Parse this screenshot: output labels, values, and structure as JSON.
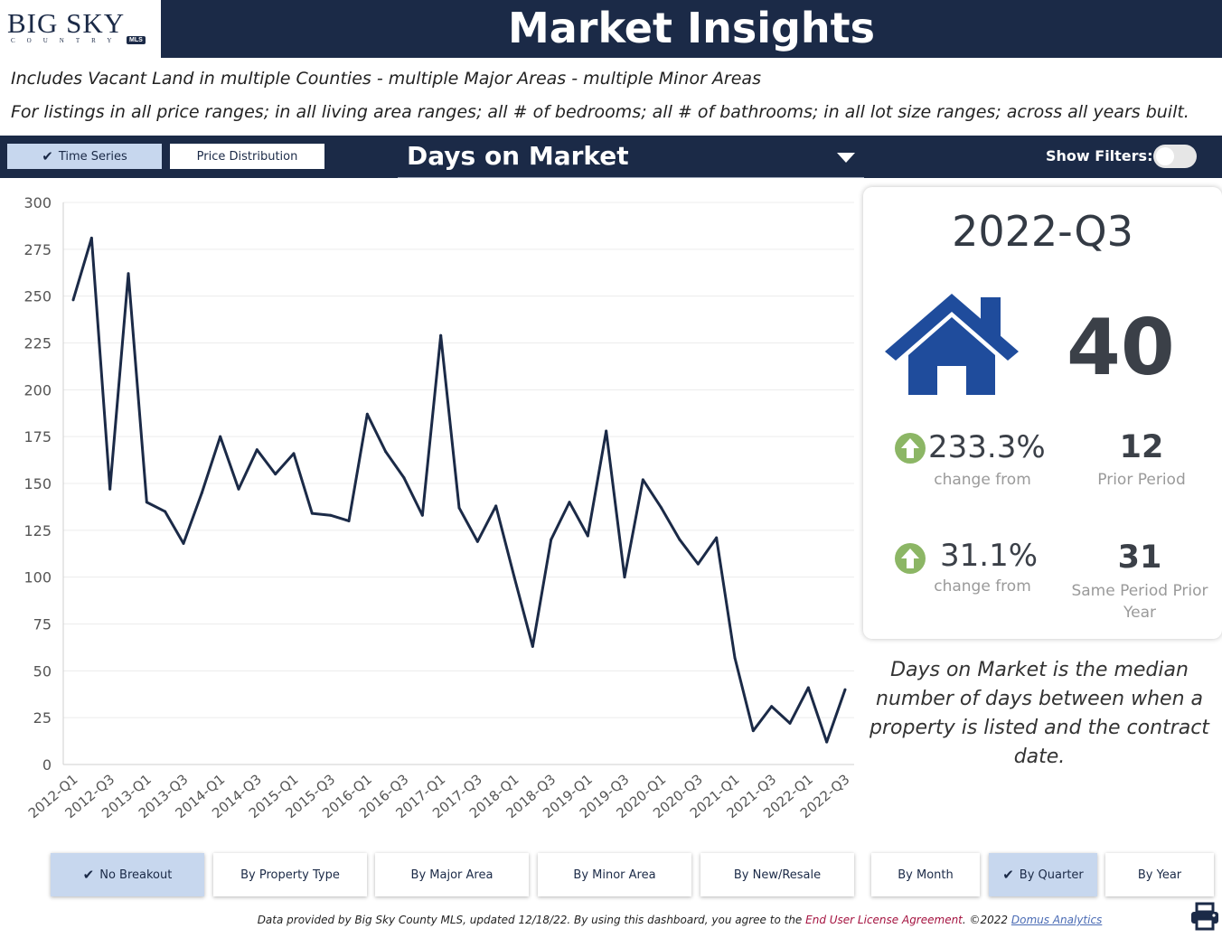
{
  "header": {
    "logo_text": "BIG SKY",
    "logo_sub": "COUNTRY",
    "logo_badge": "MLS",
    "title": "Market Insights"
  },
  "subtitle_line1": "Includes Vacant Land in multiple Counties - multiple Major Areas - multiple Minor Areas",
  "subtitle_line2": "For listings in all price ranges; in all living area ranges; all # of bedrooms; all # of bathrooms; in all lot size ranges; across all years built.",
  "toolbar": {
    "time_series_label": "Time Series",
    "price_distribution_label": "Price Distribution",
    "metric_label": "Days on Market",
    "show_filters_label": "Show Filters:"
  },
  "summary": {
    "period": "2022-Q3",
    "value": "40",
    "change1_pct": "233.3%",
    "change1_caption": "change from",
    "prior_value": "12",
    "prior_caption": "Prior Period",
    "change2_pct": "31.1%",
    "change2_caption": "change from",
    "prior_year_value": "31",
    "prior_year_caption_line1": "Same Period Prior",
    "prior_year_caption_line2": "Year",
    "definition": "Days on Market is the median number of days between when a property is listed and the contract date."
  },
  "colors": {
    "navy": "#1b2a47",
    "house": "#1f4c9c",
    "up_arrow": "#8cb665",
    "active_button": "#c7d7ee"
  },
  "breakout_buttons": [
    {
      "label": "No Breakout",
      "active": true
    },
    {
      "label": "By Property Type",
      "active": false
    },
    {
      "label": "By Major Area",
      "active": false
    },
    {
      "label": "By Minor Area",
      "active": false
    },
    {
      "label": "By New/Resale",
      "active": false
    }
  ],
  "period_buttons": [
    {
      "label": "By Month",
      "active": false
    },
    {
      "label": "By Quarter",
      "active": true
    },
    {
      "label": "By Year",
      "active": false
    }
  ],
  "footer": {
    "text_before": "Data provided by Big Sky County MLS, updated 12/18/22.  By using this dashboard, you agree to the ",
    "eula_link": "End User License Agreement",
    "text_middle": ".  ©2022 ",
    "domus_link": "Domus Analytics"
  },
  "chart_data": {
    "type": "line",
    "title": "",
    "xlabel": "",
    "ylabel": "",
    "ylim": [
      0,
      300
    ],
    "yticks": [
      0,
      25,
      50,
      75,
      100,
      125,
      150,
      175,
      200,
      225,
      250,
      275,
      300
    ],
    "grid": true,
    "x_tick_labels": [
      "2012-Q1",
      "2012-Q3",
      "2013-Q1",
      "2013-Q3",
      "2014-Q1",
      "2014-Q3",
      "2015-Q1",
      "2015-Q3",
      "2016-Q1",
      "2016-Q3",
      "2017-Q1",
      "2017-Q3",
      "2018-Q1",
      "2018-Q3",
      "2019-Q1",
      "2019-Q3",
      "2020-Q1",
      "2020-Q3",
      "2021-Q1",
      "2021-Q3",
      "2022-Q1",
      "2022-Q3"
    ],
    "x": [
      "2012-Q1",
      "2012-Q2",
      "2012-Q3",
      "2012-Q4",
      "2013-Q1",
      "2013-Q2",
      "2013-Q3",
      "2013-Q4",
      "2014-Q1",
      "2014-Q2",
      "2014-Q3",
      "2014-Q4",
      "2015-Q1",
      "2015-Q2",
      "2015-Q3",
      "2015-Q4",
      "2016-Q1",
      "2016-Q2",
      "2016-Q3",
      "2016-Q4",
      "2017-Q1",
      "2017-Q2",
      "2017-Q3",
      "2017-Q4",
      "2018-Q1",
      "2018-Q2",
      "2018-Q3",
      "2018-Q4",
      "2019-Q1",
      "2019-Q2",
      "2019-Q3",
      "2019-Q4",
      "2020-Q1",
      "2020-Q2",
      "2020-Q3",
      "2020-Q4",
      "2021-Q1",
      "2021-Q2",
      "2021-Q3",
      "2021-Q4",
      "2022-Q1",
      "2022-Q2",
      "2022-Q3"
    ],
    "series": [
      {
        "values": [
          248,
          281,
          147,
          262,
          140,
          135,
          118,
          145,
          175,
          147,
          168,
          155,
          166,
          134,
          133,
          130,
          187,
          167,
          153,
          133,
          229,
          137,
          119,
          138,
          100,
          63,
          120,
          140,
          122,
          178,
          100,
          152,
          137,
          120,
          107,
          121,
          57,
          18,
          31,
          22,
          41,
          12,
          40
        ],
        "color": "#1b2a47"
      }
    ]
  }
}
